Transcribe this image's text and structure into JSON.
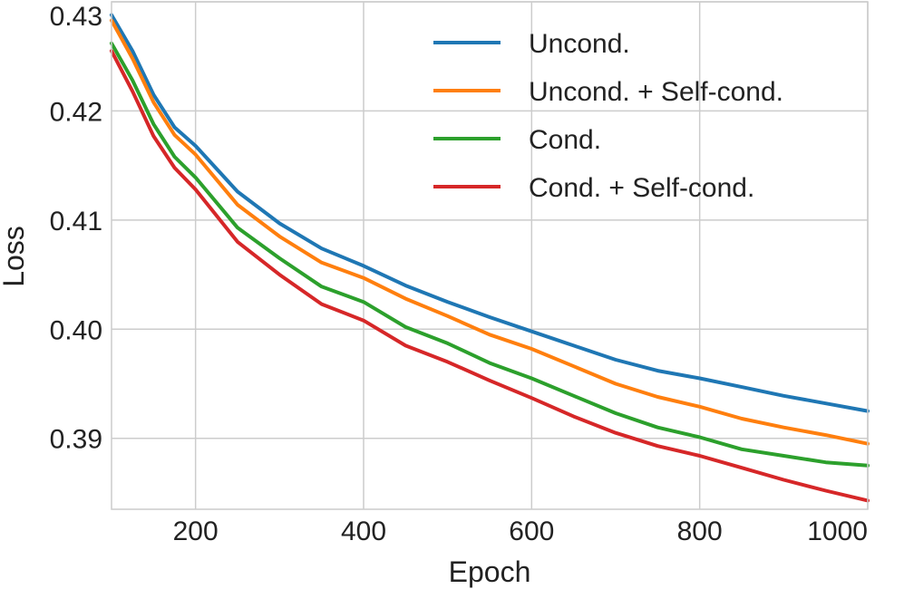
{
  "chart_data": {
    "type": "line",
    "title": "",
    "xlabel": "Epoch",
    "ylabel": "Loss",
    "xlim": [
      100,
      1000
    ],
    "ylim": [
      0.3835,
      0.43
    ],
    "xticks": [
      200,
      400,
      600,
      800,
      1000
    ],
    "xtick_labels": [
      "200",
      "400",
      "600",
      "800",
      "1000"
    ],
    "yticks": [
      0.39,
      0.4,
      0.41,
      0.42,
      0.43
    ],
    "ytick_labels": [
      "0.39",
      "0.40",
      "0.41",
      "0.42",
      "0.43"
    ],
    "grid": true,
    "legend_position": "top-right",
    "x": [
      100,
      125,
      150,
      175,
      200,
      250,
      300,
      350,
      400,
      450,
      500,
      550,
      600,
      650,
      700,
      750,
      800,
      850,
      900,
      950,
      1000
    ],
    "series": [
      {
        "name": "Uncond.",
        "color": "#1f77b4",
        "values": [
          0.4288,
          0.4255,
          0.4215,
          0.4185,
          0.4168,
          0.4126,
          0.4097,
          0.4074,
          0.4058,
          0.404,
          0.4025,
          0.4011,
          0.3998,
          0.3985,
          0.3972,
          0.3962,
          0.3955,
          0.3947,
          0.3939,
          0.3932,
          0.3925
        ]
      },
      {
        "name": "Uncond. + Self-cond.",
        "color": "#ff7f0e",
        "values": [
          0.4283,
          0.4248,
          0.4208,
          0.4178,
          0.416,
          0.4114,
          0.4085,
          0.4061,
          0.4047,
          0.4028,
          0.4012,
          0.3995,
          0.3982,
          0.3966,
          0.395,
          0.3938,
          0.3929,
          0.3918,
          0.391,
          0.3903,
          0.3895
        ]
      },
      {
        "name": "Cond.",
        "color": "#2ca02c",
        "values": [
          0.4262,
          0.4228,
          0.4188,
          0.4158,
          0.4139,
          0.4093,
          0.4065,
          0.4039,
          0.4025,
          0.4002,
          0.3987,
          0.3969,
          0.3955,
          0.3939,
          0.3923,
          0.391,
          0.3901,
          0.389,
          0.3884,
          0.3878,
          0.3875
        ]
      },
      {
        "name": "Cond. + Self-cond.",
        "color": "#d62728",
        "values": [
          0.4255,
          0.4218,
          0.4177,
          0.4148,
          0.4128,
          0.408,
          0.405,
          0.4023,
          0.4008,
          0.3985,
          0.397,
          0.3953,
          0.3937,
          0.392,
          0.3905,
          0.3893,
          0.3884,
          0.3873,
          0.3862,
          0.3852,
          0.3843
        ]
      }
    ]
  }
}
